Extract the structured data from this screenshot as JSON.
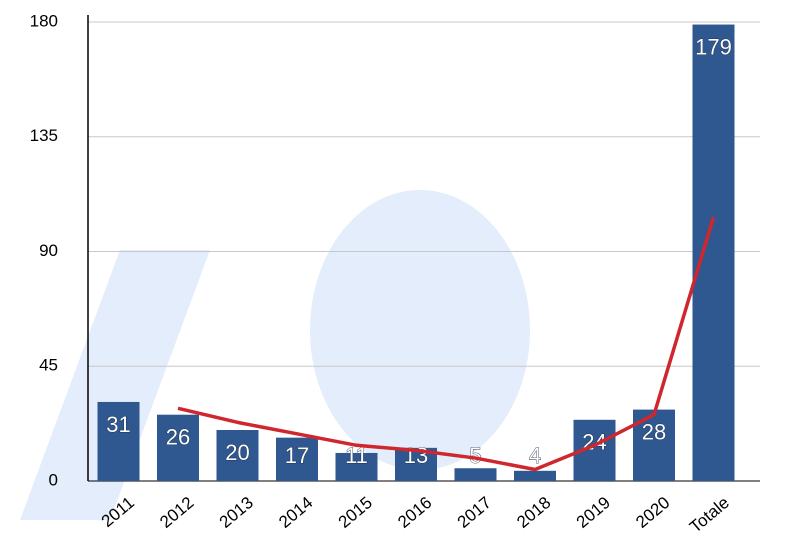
{
  "chart_data": {
    "type": "bar",
    "categories": [
      "2011",
      "2012",
      "2013",
      "2014",
      "2015",
      "2016",
      "2017",
      "2018",
      "2019",
      "2020",
      "Totale"
    ],
    "series": [
      {
        "type": "bar",
        "color": "#2f5790",
        "values": [
          31,
          26,
          20,
          17,
          11,
          13,
          5,
          4,
          24,
          28,
          179
        ]
      },
      {
        "type": "line",
        "color": "#d0262d",
        "values": [
          null,
          28.5,
          23,
          18.5,
          14,
          12,
          9,
          4.5,
          14,
          26,
          103.5
        ]
      }
    ],
    "ylim": [
      0,
      180
    ],
    "yticks": [
      0,
      45,
      90,
      135,
      180
    ],
    "grid": true,
    "data_labels": true
  }
}
